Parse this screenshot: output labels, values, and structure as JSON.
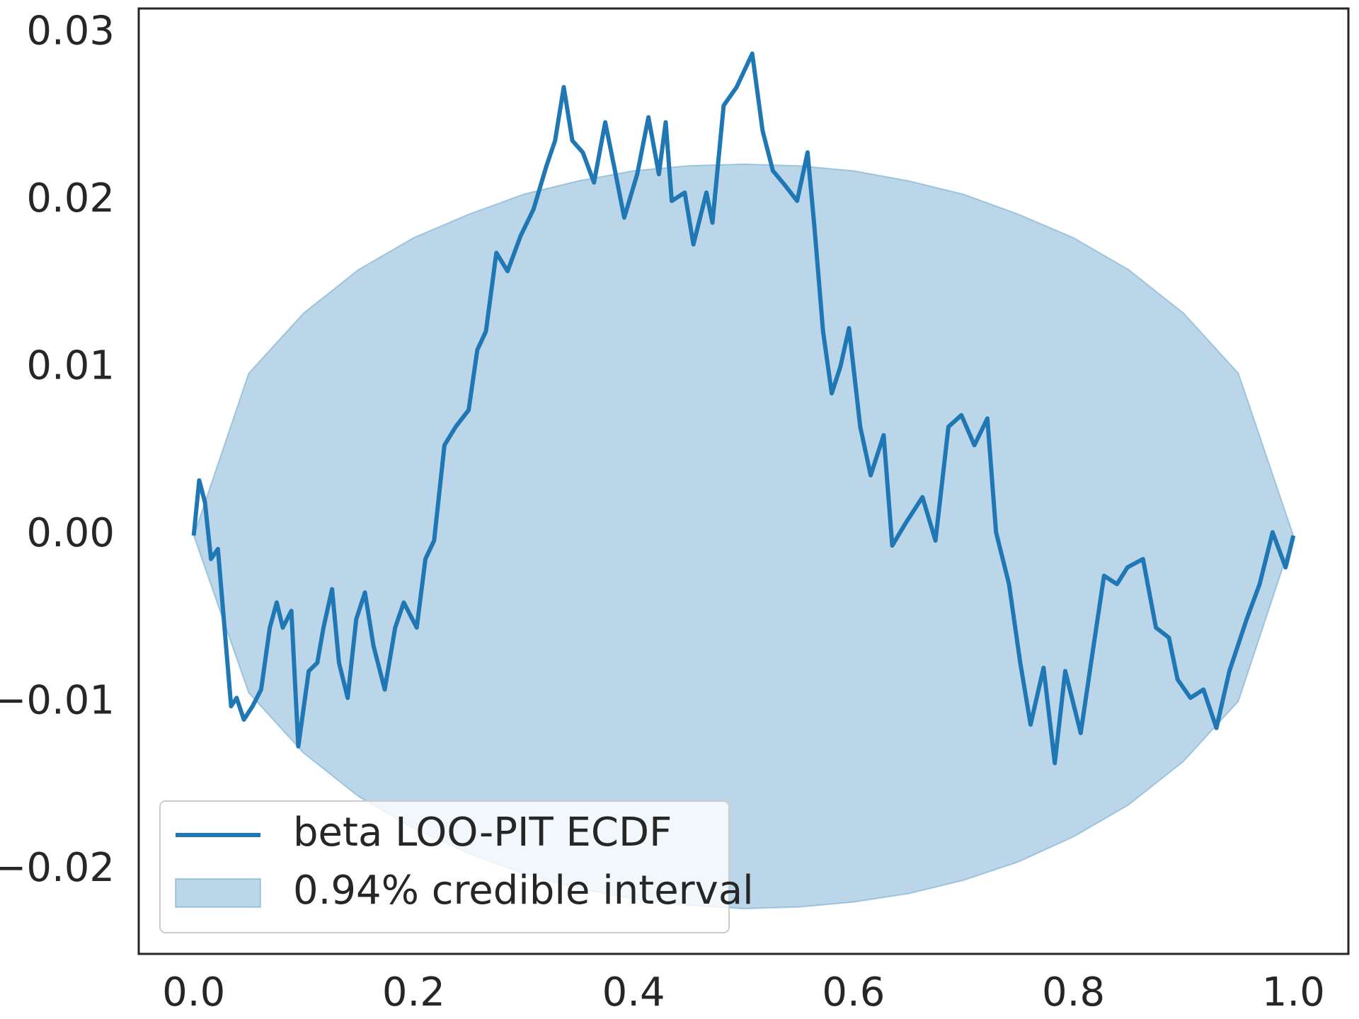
{
  "chart_data": {
    "type": "line",
    "x": [
      0,
      0.005,
      0.0102,
      0.0157,
      0.022,
      0.028,
      0.034,
      0.039,
      0.0456,
      0.0535,
      0.0613,
      0.0692,
      0.0755,
      0.081,
      0.0888,
      0.0951,
      0.1046,
      0.1124,
      0.118,
      0.1258,
      0.1321,
      0.14,
      0.1478,
      0.1557,
      0.1635,
      0.1737,
      0.1832,
      0.191,
      0.2028,
      0.2107,
      0.2186,
      0.228,
      0.2382,
      0.25,
      0.2579,
      0.2657,
      0.2752,
      0.2854,
      0.2972,
      0.309,
      0.3208,
      0.3286,
      0.3365,
      0.3443,
      0.3538,
      0.364,
      0.3742,
      0.3837,
      0.3915,
      0.4033,
      0.4135,
      0.423,
      0.4292,
      0.4347,
      0.4465,
      0.4544,
      0.4662,
      0.4717,
      0.4819,
      0.4937,
      0.5079,
      0.5173,
      0.5267,
      0.5369,
      0.5487,
      0.5582,
      0.5645,
      0.5723,
      0.5802,
      0.5881,
      0.5959,
      0.6061,
      0.6156,
      0.6274,
      0.6352,
      0.647,
      0.6627,
      0.6745,
      0.6863,
      0.6981,
      0.7099,
      0.7217,
      0.7296,
      0.7414,
      0.7516,
      0.761,
      0.7728,
      0.783,
      0.7925,
      0.8066,
      0.816,
      0.8278,
      0.8396,
      0.8491,
      0.8632,
      0.875,
      0.8868,
      0.8947,
      0.9064,
      0.9182,
      0.93,
      0.9418,
      0.9575,
      0.9693,
      0.9811,
      0.9929,
      1.0
    ],
    "series": [
      {
        "name": "beta LOO-PIT ECDF",
        "color": "#1f77b4",
        "values": [
          0,
          0.0033,
          0.002,
          -0.0014,
          -0.0008,
          -0.0055,
          -0.0102,
          -0.0097,
          -0.011,
          -0.0102,
          -0.0092,
          -0.0055,
          -0.004,
          -0.0055,
          -0.0045,
          -0.0126,
          -0.0081,
          -0.0076,
          -0.0055,
          -0.0032,
          -0.0076,
          -0.0097,
          -0.005,
          -0.0034,
          -0.0066,
          -0.0092,
          -0.0055,
          -0.004,
          -0.0055,
          -0.0014,
          -0.0003,
          0.0054,
          0.0065,
          0.0075,
          0.0111,
          0.0122,
          0.0169,
          0.0158,
          0.0179,
          0.0195,
          0.0221,
          0.0236,
          0.0268,
          0.0236,
          0.0229,
          0.0211,
          0.0247,
          0.0216,
          0.019,
          0.0216,
          0.025,
          0.0216,
          0.0247,
          0.02,
          0.0205,
          0.0174,
          0.0205,
          0.0187,
          0.0257,
          0.0268,
          0.0288,
          0.0242,
          0.0218,
          0.021,
          0.02,
          0.0229,
          0.0184,
          0.0122,
          0.0085,
          0.0101,
          0.0124,
          0.0065,
          0.0036,
          0.006,
          -0.0006,
          0.0007,
          0.0023,
          -0.0003,
          0.0065,
          0.0072,
          0.0054,
          0.007,
          0.0002,
          -0.0029,
          -0.0076,
          -0.0113,
          -0.0079,
          -0.0136,
          -0.0081,
          -0.0118,
          -0.0076,
          -0.0024,
          -0.0029,
          -0.0019,
          -0.0014,
          -0.0055,
          -0.0061,
          -0.0086,
          -0.0097,
          -0.0092,
          -0.0115,
          -0.0081,
          -0.005,
          -0.0029,
          0.0002,
          -0.0019,
          0
        ]
      }
    ],
    "band": {
      "name": "0.94% credible interval",
      "color": "#1f77b4",
      "x": [
        0,
        0.05,
        0.1,
        0.15,
        0.2,
        0.25,
        0.3,
        0.35,
        0.4,
        0.45,
        0.5,
        0.55,
        0.6,
        0.65,
        0.7,
        0.75,
        0.8,
        0.85,
        0.9,
        0.95,
        1.0
      ],
      "upper": [
        0,
        0.0097,
        0.0133,
        0.0159,
        0.0178,
        0.0192,
        0.0204,
        0.0212,
        0.0218,
        0.0221,
        0.0222,
        0.0221,
        0.0218,
        0.0212,
        0.0204,
        0.0192,
        0.0178,
        0.0159,
        0.0133,
        0.0097,
        0
      ],
      "lower": [
        0,
        -0.0094,
        -0.013,
        -0.0156,
        -0.0175,
        -0.019,
        -0.0202,
        -0.0211,
        -0.0217,
        -0.0221,
        -0.0223,
        -0.0222,
        -0.0219,
        -0.0214,
        -0.0206,
        -0.0195,
        -0.018,
        -0.0161,
        -0.0135,
        -0.0099,
        0
      ]
    },
    "xlim": [
      -0.05,
      1.05
    ],
    "ylim": [
      -0.025,
      0.0315
    ],
    "xticks": [
      {
        "value": 0,
        "label": "0.0"
      },
      0.2,
      0.4,
      0.6,
      0.8,
      {
        "value": 1,
        "label": "1.0"
      }
    ],
    "yticks": [
      {
        "value": -0.02,
        "label": "−0.02"
      },
      {
        "value": -0.01,
        "label": "−0.01"
      },
      {
        "value": 0,
        "label": "0.00"
      },
      0.01,
      0.02,
      0.03
    ],
    "legend": "lower left",
    "grid": false
  }
}
